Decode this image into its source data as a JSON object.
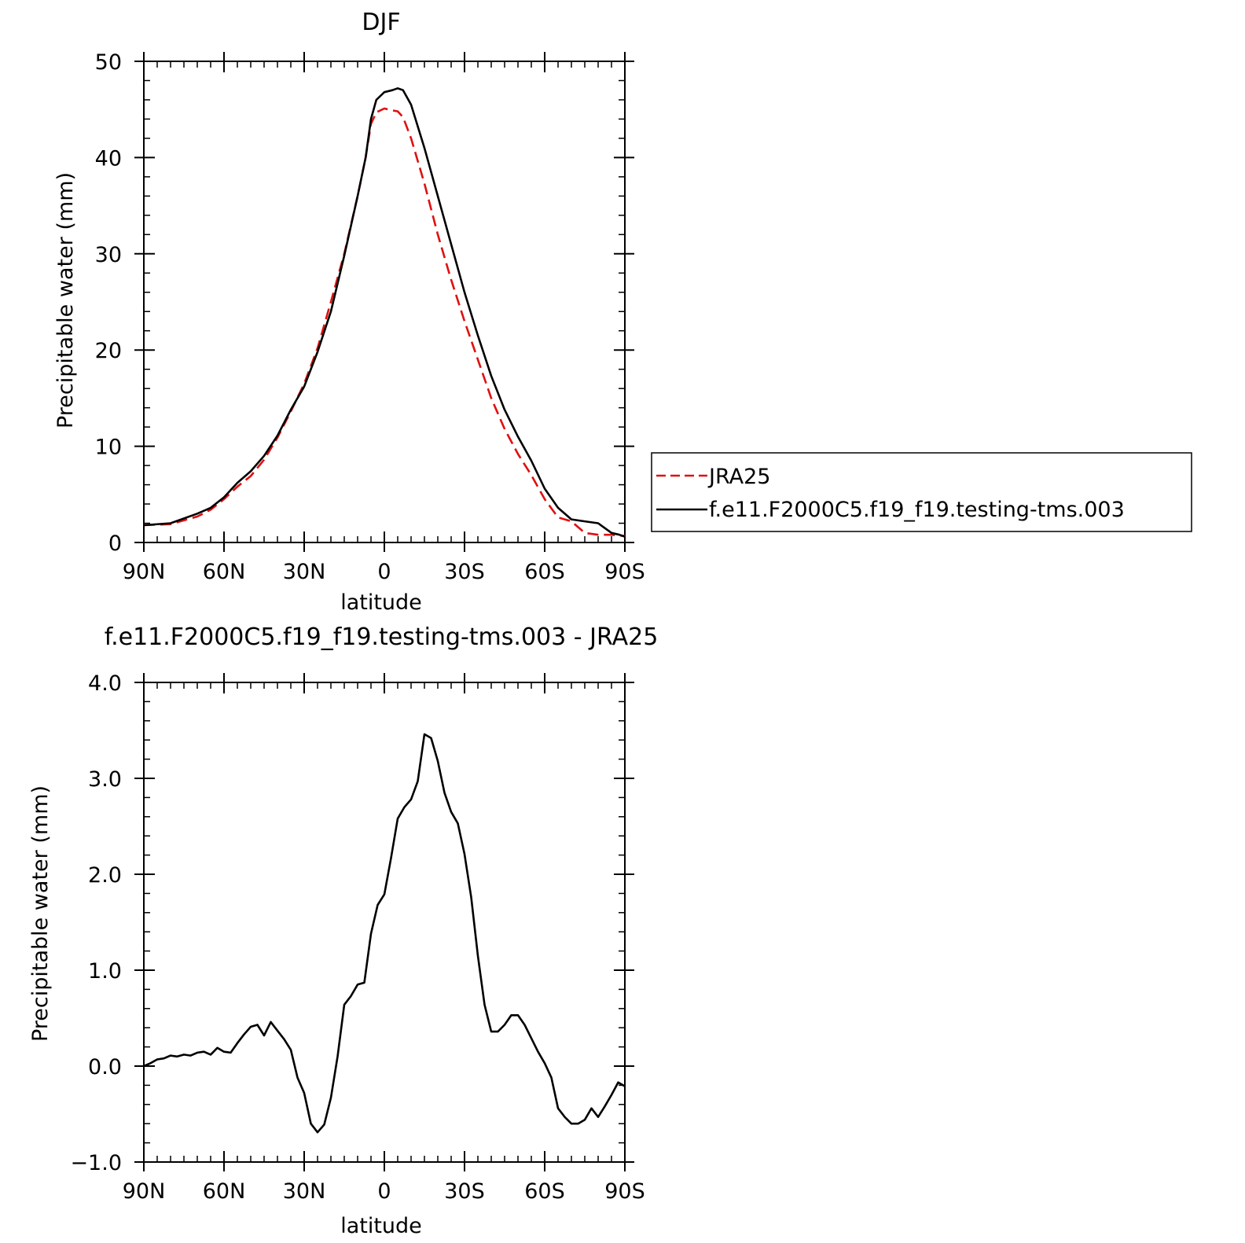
{
  "chart_data": [
    {
      "type": "line",
      "title": "DJF",
      "xlabel": "latitude",
      "ylabel": "Precipitable water (mm)",
      "xlim": [
        90,
        -90
      ],
      "ylim": [
        0,
        50
      ],
      "x_ticks": [
        90,
        60,
        30,
        0,
        -30,
        -60,
        -90
      ],
      "x_tick_labels": [
        "90N",
        "60N",
        "30N",
        "0",
        "30S",
        "60S",
        "90S"
      ],
      "y_ticks": [
        0,
        10,
        20,
        30,
        40,
        50
      ],
      "y_tick_labels": [
        "0",
        "10",
        "20",
        "30",
        "40",
        "50"
      ],
      "legend_position": "right",
      "series": [
        {
          "name": "JRA25",
          "color": "#e01010",
          "dash": true,
          "x": [
            90,
            80,
            70,
            65,
            60,
            55,
            50,
            45,
            40,
            35,
            30,
            25,
            20,
            15,
            10,
            7,
            5,
            3,
            0,
            -3,
            -5,
            -7,
            -10,
            -15,
            -20,
            -25,
            -30,
            -35,
            -40,
            -45,
            -50,
            -55,
            -60,
            -65,
            -70,
            -75,
            -80,
            -85,
            -88,
            -90
          ],
          "y": [
            1.8,
            1.9,
            2.7,
            3.4,
            4.5,
            5.8,
            6.9,
            8.6,
            10.9,
            13.6,
            16.5,
            20.2,
            25.0,
            30.0,
            36.0,
            40.0,
            43.5,
            44.7,
            45.1,
            44.9,
            44.8,
            44.2,
            42.0,
            37.3,
            32.0,
            27.3,
            23.0,
            19.0,
            15.0,
            11.8,
            9.2,
            7.0,
            4.5,
            2.6,
            2.2,
            1.0,
            0.8,
            0.8,
            0.7,
            0.7
          ]
        },
        {
          "name": "f.e11.F2000C5.f19_f19.testing-tms.003",
          "color": "#000000",
          "dash": false,
          "x": [
            90,
            80,
            70,
            65,
            60,
            55,
            50,
            45,
            40,
            35,
            30,
            25,
            20,
            15,
            10,
            7,
            5,
            3,
            0,
            -3,
            -5,
            -7,
            -10,
            -15,
            -20,
            -25,
            -30,
            -35,
            -40,
            -45,
            -50,
            -55,
            -60,
            -65,
            -70,
            -75,
            -80,
            -85,
            -88,
            -90
          ],
          "y": [
            1.8,
            2.0,
            3.0,
            3.6,
            4.7,
            6.2,
            7.4,
            9.0,
            11.1,
            13.8,
            16.2,
            19.8,
            24.0,
            29.8,
            36.0,
            40.0,
            44.0,
            46.0,
            46.8,
            47.0,
            47.2,
            47.0,
            45.5,
            41.0,
            36.0,
            31.0,
            26.0,
            21.5,
            17.3,
            13.8,
            11.0,
            8.5,
            5.6,
            3.6,
            2.4,
            2.2,
            2.0,
            1.0,
            0.8,
            0.6
          ]
        }
      ]
    },
    {
      "type": "line",
      "title": "f.e11.F2000C5.f19_f19.testing-tms.003 - JRA25",
      "xlabel": "latitude",
      "ylabel": "Precipitable water (mm)",
      "xlim": [
        90,
        -90
      ],
      "ylim": [
        -1.0,
        4.0
      ],
      "x_ticks": [
        90,
        60,
        30,
        0,
        -30,
        -60,
        -90
      ],
      "x_tick_labels": [
        "90N",
        "60N",
        "30N",
        "0",
        "30S",
        "60S",
        "90S"
      ],
      "y_ticks": [
        -1.0,
        0.0,
        1.0,
        2.0,
        3.0,
        4.0
      ],
      "y_tick_labels": [
        "-1.0",
        "0.0",
        "1.0",
        "2.0",
        "3.0",
        "4.0"
      ],
      "series": [
        {
          "color": "#000000",
          "dash": false,
          "x": [
            90,
            87.5,
            85,
            82.5,
            80,
            77.5,
            75,
            72.5,
            70,
            67.5,
            65,
            62.5,
            60,
            57.5,
            55,
            52.5,
            50,
            47.5,
            45,
            42.5,
            40,
            37.5,
            35,
            32.5,
            30,
            27.5,
            25,
            22.5,
            20,
            17.5,
            15,
            12.5,
            10,
            7.5,
            5,
            2.5,
            0,
            -2.5,
            -5,
            -7.5,
            -10,
            -12.5,
            -15,
            -17.5,
            -20,
            -22.5,
            -25,
            -27.5,
            -30,
            -32.5,
            -35,
            -37.5,
            -40,
            -42.5,
            -45,
            -47.5,
            -50,
            -52.5,
            -55,
            -57.5,
            -60,
            -62.5,
            -65,
            -67.5,
            -70,
            -72.5,
            -75,
            -77.5,
            -80,
            -82.5,
            -85,
            -87.5,
            -90
          ],
          "y": [
            0.0,
            0.03,
            0.07,
            0.08,
            0.11,
            0.1,
            0.12,
            0.11,
            0.14,
            0.15,
            0.12,
            0.19,
            0.15,
            0.14,
            0.24,
            0.33,
            0.41,
            0.43,
            0.32,
            0.46,
            0.37,
            0.28,
            0.17,
            -0.12,
            -0.28,
            -0.6,
            -0.69,
            -0.61,
            -0.33,
            0.1,
            0.64,
            0.73,
            0.85,
            0.87,
            1.38,
            1.68,
            1.79,
            2.17,
            2.58,
            2.7,
            2.78,
            2.97,
            3.46,
            3.42,
            3.18,
            2.85,
            2.65,
            2.53,
            2.21,
            1.76,
            1.15,
            0.64,
            0.36,
            0.36,
            0.43,
            0.53,
            0.53,
            0.43,
            0.29,
            0.15,
            0.03,
            -0.12,
            -0.44,
            -0.53,
            -0.6,
            -0.6,
            -0.56,
            -0.44,
            -0.53,
            -0.42,
            -0.3,
            -0.17,
            -0.21
          ]
        }
      ]
    }
  ]
}
